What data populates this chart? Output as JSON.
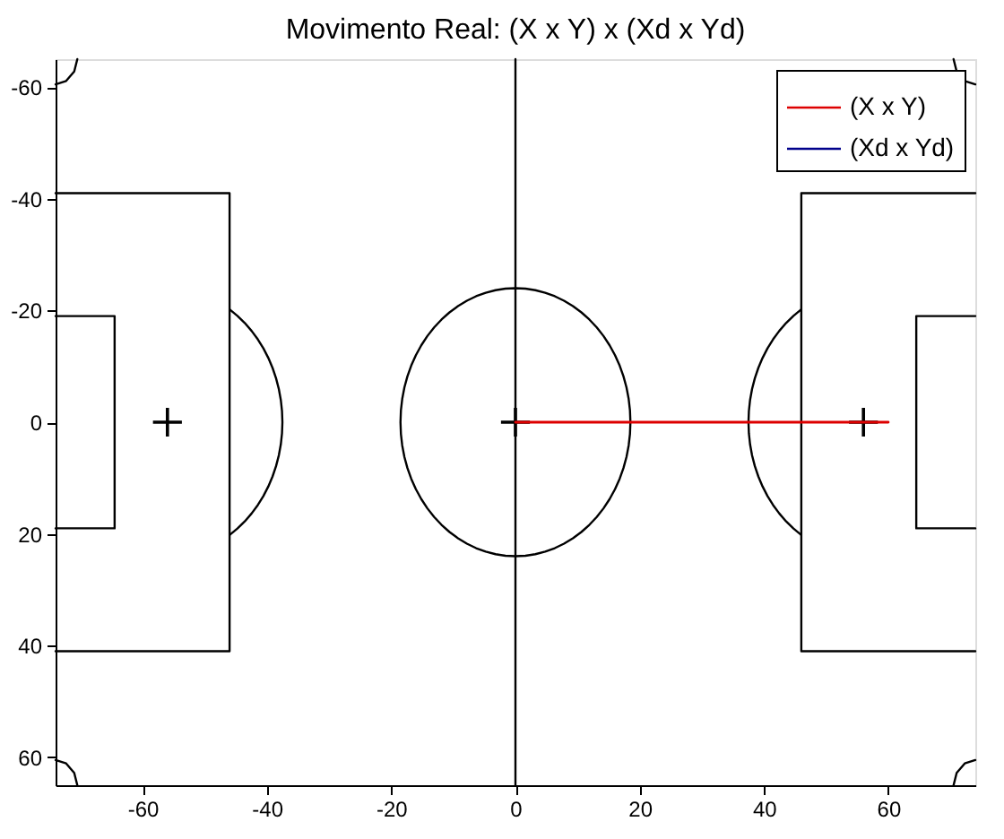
{
  "chart_data": {
    "type": "line",
    "title": "Movimento Real: (X x Y) x (Xd x Yd)",
    "xlim": [
      -74,
      74
    ],
    "xticks": [
      -60,
      -40,
      -20,
      0,
      20,
      40,
      60
    ],
    "ylim": [
      65,
      -65
    ],
    "yticks": [
      -60,
      -40,
      -20,
      0,
      20,
      40,
      60
    ],
    "legend": "top right",
    "series": [
      {
        "color": "#000000",
        "x": [
          0,
          0
        ],
        "values": [
          -65,
          65
        ]
      },
      {
        "color": "#000000",
        "x": [
          -74,
          -46,
          -46,
          -74
        ],
        "values": [
          -41,
          -41,
          41,
          41
        ]
      },
      {
        "color": "#000000",
        "x": [
          -74,
          -64.5,
          -64.5,
          -74
        ],
        "values": [
          -19,
          -19,
          19,
          19
        ]
      },
      {
        "color": "#000000",
        "x": [
          74,
          46,
          46,
          74
        ],
        "values": [
          -41,
          -41,
          41,
          41
        ]
      },
      {
        "color": "#000000",
        "x": [
          74,
          64.5,
          64.5,
          74
        ],
        "values": [
          -19,
          -19,
          19,
          19
        ]
      },
      {
        "color": "#000000",
        "x": [
          -74,
          -72.3,
          -71,
          -70.5
        ],
        "values": [
          -60.5,
          -61.1,
          -62.8,
          -65
        ]
      },
      {
        "color": "#000000",
        "x": [
          -74,
          -72.3,
          -71,
          -70.5
        ],
        "values": [
          60.5,
          61.1,
          62.8,
          65
        ]
      },
      {
        "color": "#000000",
        "x": [
          70.5,
          71,
          72.3,
          74
        ],
        "values": [
          -65,
          -62.8,
          -61.1,
          -60.5
        ]
      },
      {
        "color": "#000000",
        "x": [
          70.5,
          71,
          72.3,
          74
        ],
        "values": [
          65,
          62.8,
          61.1,
          60.5
        ]
      },
      {
        "type": "scatter",
        "marker": "cross",
        "color": "#000000",
        "x": [
          -56,
          0,
          56
        ],
        "values": [
          0,
          0,
          0
        ]
      },
      {
        "name": "(X x Y)",
        "color": "#dd0000",
        "x": [
          0,
          60
        ],
        "values": [
          0,
          0
        ]
      },
      {
        "name": "(Xd x Yd)",
        "color": "#00008b"
      }
    ]
  }
}
